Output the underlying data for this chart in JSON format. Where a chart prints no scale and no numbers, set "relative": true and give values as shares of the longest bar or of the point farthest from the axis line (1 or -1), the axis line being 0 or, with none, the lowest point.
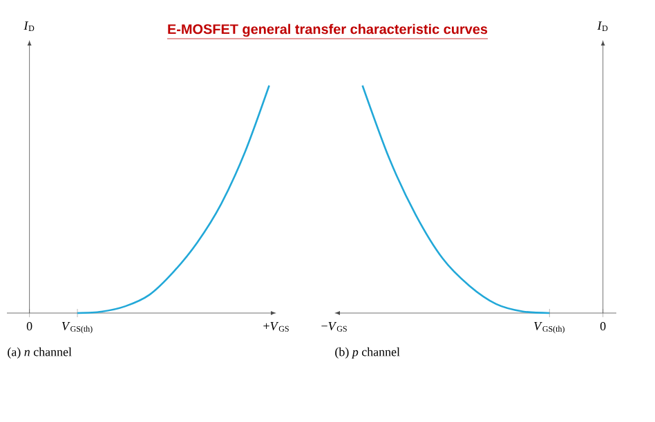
{
  "chart_data": [
    {
      "type": "line",
      "title": "E-MOSFET general transfer characteristic curves",
      "xlabel": "+*V*$_{GS}$",
      "ylabel": "*I*$_{D}$",
      "relative": true,
      "color": "#22a8d8",
      "categories": [
        "0",
        null,
        "*V*$_{GS(th)}$",
        null,
        null,
        null,
        null,
        null,
        null,
        null,
        null
      ],
      "values": [
        null,
        null,
        0,
        0.006,
        0.03,
        0.08,
        0.18,
        0.31,
        0.48,
        0.71,
        1
      ],
      "annotations": [
        "(a) *n* channel"
      ]
    },
    {
      "type": "line",
      "xlabel": "−*V*$_{GS}$",
      "ylabel": "*I*$_{D}$",
      "relative": true,
      "color": "#22a8d8",
      "categories": [
        null,
        null,
        null,
        null,
        null,
        null,
        null,
        null,
        "*V*$_{GS(th)}$",
        null,
        "0"
      ],
      "values": [
        null,
        1,
        0.68,
        0.43,
        0.24,
        0.12,
        0.04,
        0.007,
        0,
        null,
        null
      ],
      "annotations": [
        "(b) *p* channel"
      ]
    }
  ]
}
